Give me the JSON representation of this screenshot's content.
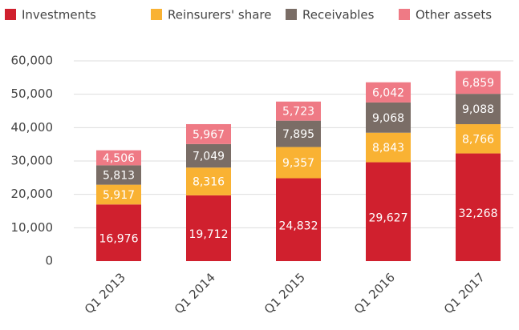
{
  "chart_data": {
    "type": "bar",
    "stacked": true,
    "categories": [
      "Q1 2013",
      "Q1 2014",
      "Q1 2015",
      "Q1 2016",
      "Q1 2017"
    ],
    "series": [
      {
        "name": "Investments",
        "color": "#d0202e",
        "values": [
          16976,
          19712,
          24832,
          29627,
          32268
        ],
        "value_labels": [
          "16,976",
          "19,712",
          "24,832",
          "29,627",
          "32,268"
        ]
      },
      {
        "name": "Reinsurers' share",
        "color": "#f9b233",
        "values": [
          5917,
          8316,
          9357,
          8843,
          8766
        ],
        "value_labels": [
          "5,917",
          "8,316",
          "9,357",
          "8,843",
          "8,766"
        ]
      },
      {
        "name": "Receivables",
        "color": "#7a6d66",
        "values": [
          5813,
          7049,
          7895,
          9068,
          9088
        ],
        "value_labels": [
          "5,813",
          "7,049",
          "7,895",
          "9,068",
          "9,088"
        ]
      },
      {
        "name": "Other assets",
        "color": "#ef7a85",
        "values": [
          4506,
          5967,
          5723,
          6042,
          6859
        ],
        "value_labels": [
          "4,506",
          "5,967",
          "5,723",
          "6,042",
          "6,859"
        ]
      }
    ],
    "ylim": [
      0,
      60000
    ],
    "yticks": [
      0,
      {
        "value": 10000,
        "label": "10,000"
      },
      {
        "value": 20000,
        "label": "20,000"
      },
      {
        "value": 30000,
        "label": "30,000"
      },
      {
        "value": 40000,
        "label": "40,000"
      },
      {
        "value": 50000,
        "label": "50,000"
      },
      {
        "value": 60000,
        "label": "60,000"
      }
    ],
    "grid": true,
    "legend": "top"
  }
}
